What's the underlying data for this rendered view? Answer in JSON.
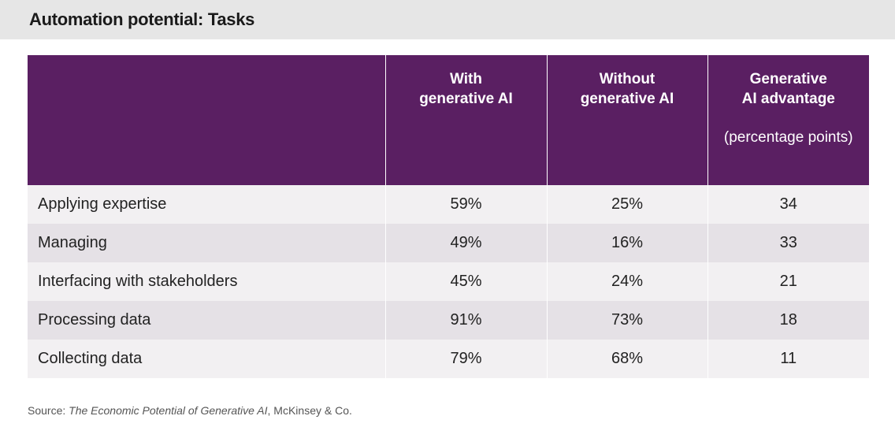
{
  "title": "Automation potential: Tasks",
  "table": {
    "headers": {
      "col1": "",
      "col2_line1": "With",
      "col2_line2": "generative AI",
      "col3_line1": "Without",
      "col3_line2": "generative AI",
      "col4_line1": "Generative",
      "col4_line2": "AI advantage",
      "col4_sub": "(percentage points)"
    },
    "rows": [
      {
        "task": "Applying expertise",
        "with": "59%",
        "without": "25%",
        "advantage": "34"
      },
      {
        "task": "Managing",
        "with": "49%",
        "without": "16%",
        "advantage": "33"
      },
      {
        "task": "Interfacing with stakeholders",
        "with": "45%",
        "without": "24%",
        "advantage": "21"
      },
      {
        "task": "Processing data",
        "with": "91%",
        "without": "73%",
        "advantage": "18"
      },
      {
        "task": "Collecting data",
        "with": "79%",
        "without": "68%",
        "advantage": "11"
      }
    ]
  },
  "source": {
    "prefix": "Source: ",
    "work": "The Economic Potential of Generative AI",
    "suffix": ", McKinsey & Co."
  },
  "colors": {
    "header_bg": "#5a1f62",
    "title_bar_bg": "#e6e6e6",
    "row_light": "#f2f0f2",
    "row_dark": "#e5e1e6"
  }
}
